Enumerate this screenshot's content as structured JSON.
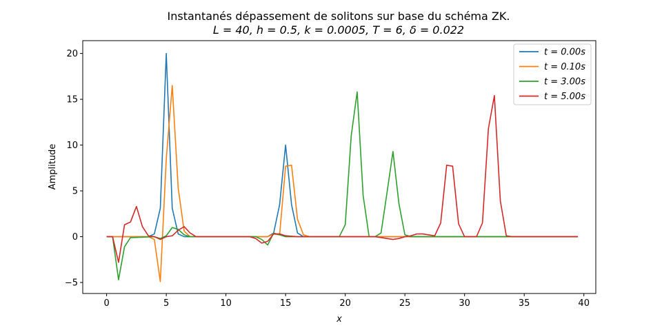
{
  "chart_data": {
    "type": "line",
    "title": "Instantanés dépassement de solitons sur base du schéma ZK.",
    "subtitle": "L = 40, h = 0.5, k = 0.0005, T = 6, δ = 0.022",
    "xlabel": "x",
    "ylabel": "Amplitude",
    "xlim": [
      -2,
      41
    ],
    "ylim": [
      -6.2,
      21.4
    ],
    "xticks": [
      0,
      5,
      10,
      15,
      20,
      25,
      30,
      35,
      40
    ],
    "yticks": [
      -5,
      0,
      5,
      10,
      15,
      20
    ],
    "xtick_labels": [
      "0",
      "5",
      "10",
      "15",
      "20",
      "25",
      "30",
      "35",
      "40"
    ],
    "ytick_labels": [
      "−5",
      "0",
      "5",
      "10",
      "15",
      "20"
    ],
    "grid": false,
    "legend_position": "top-right",
    "series": [
      {
        "name": "t = 0.00s",
        "color": "#1f77b4",
        "points": [
          [
            0,
            0
          ],
          [
            3.5,
            0
          ],
          [
            4,
            0.3
          ],
          [
            4.5,
            3.1
          ],
          [
            5,
            20
          ],
          [
            5.5,
            3.1
          ],
          [
            6,
            0.3
          ],
          [
            6.5,
            0
          ],
          [
            13.5,
            0
          ],
          [
            14,
            0.4
          ],
          [
            14.5,
            3.5
          ],
          [
            15,
            10
          ],
          [
            15.5,
            3.5
          ],
          [
            16,
            0.4
          ],
          [
            16.5,
            0
          ],
          [
            39.5,
            0
          ]
        ]
      },
      {
        "name": "t = 0.10s",
        "color": "#ff7f0e",
        "points": [
          [
            0,
            0
          ],
          [
            3.5,
            0
          ],
          [
            4,
            -0.3
          ],
          [
            4.5,
            -4.9
          ],
          [
            5,
            8.5
          ],
          [
            5.5,
            16.5
          ],
          [
            6,
            5.3
          ],
          [
            6.5,
            0.6
          ],
          [
            7,
            0
          ],
          [
            13.5,
            0
          ],
          [
            14,
            0.3
          ],
          [
            14.5,
            0.2
          ],
          [
            15,
            7.7
          ],
          [
            15.5,
            7.8
          ],
          [
            16,
            1.9
          ],
          [
            16.5,
            0.2
          ],
          [
            17,
            0
          ],
          [
            39.5,
            0
          ]
        ]
      },
      {
        "name": "t = 3.00s",
        "color": "#2ca02c",
        "points": [
          [
            0,
            0
          ],
          [
            0.5,
            0
          ],
          [
            1,
            -4.7
          ],
          [
            1.5,
            -1.1
          ],
          [
            2,
            -0.1
          ],
          [
            4,
            0
          ],
          [
            4.5,
            -0.2
          ],
          [
            5,
            0.1
          ],
          [
            5.5,
            1
          ],
          [
            6,
            0.8
          ],
          [
            6.5,
            0.2
          ],
          [
            7,
            0
          ],
          [
            12.5,
            0
          ],
          [
            13,
            -0.3
          ],
          [
            13.5,
            -0.9
          ],
          [
            14,
            0.4
          ],
          [
            14.5,
            0.2
          ],
          [
            15,
            0
          ],
          [
            19.5,
            0
          ],
          [
            20,
            1.3
          ],
          [
            20.5,
            11
          ],
          [
            21,
            15.8
          ],
          [
            21.5,
            4.5
          ],
          [
            22,
            0
          ],
          [
            22.5,
            0
          ],
          [
            23,
            0.4
          ],
          [
            23.5,
            4.8
          ],
          [
            24,
            9.3
          ],
          [
            24.5,
            3.6
          ],
          [
            25,
            0.2
          ],
          [
            25.5,
            0
          ],
          [
            39.5,
            0
          ]
        ]
      },
      {
        "name": "t = 5.00s",
        "color": "#d62728",
        "points": [
          [
            0,
            0
          ],
          [
            0.5,
            0
          ],
          [
            1,
            -2.8
          ],
          [
            1.5,
            1.3
          ],
          [
            2,
            1.6
          ],
          [
            2.5,
            3.3
          ],
          [
            3,
            1.1
          ],
          [
            3.5,
            0.1
          ],
          [
            4,
            0
          ],
          [
            4.5,
            -0.3
          ],
          [
            5,
            0
          ],
          [
            5.5,
            0.1
          ],
          [
            6,
            0.7
          ],
          [
            6.5,
            1.1
          ],
          [
            7,
            0.4
          ],
          [
            7.5,
            0
          ],
          [
            12,
            0
          ],
          [
            12.5,
            -0.2
          ],
          [
            13,
            -0.7
          ],
          [
            13.5,
            -0.5
          ],
          [
            14,
            0.3
          ],
          [
            14.5,
            0.3
          ],
          [
            15,
            0.1
          ],
          [
            16,
            0
          ],
          [
            22.5,
            0
          ],
          [
            23,
            -0.1
          ],
          [
            23.5,
            -0.2
          ],
          [
            24,
            -0.3
          ],
          [
            24.5,
            -0.2
          ],
          [
            25,
            0
          ],
          [
            25.5,
            0.1
          ],
          [
            26,
            0.3
          ],
          [
            26.5,
            0.3
          ],
          [
            27,
            0.2
          ],
          [
            27.5,
            0.1
          ],
          [
            28,
            1.5
          ],
          [
            28.5,
            7.8
          ],
          [
            29,
            7.7
          ],
          [
            29.5,
            1.4
          ],
          [
            30,
            0
          ],
          [
            30.5,
            0
          ],
          [
            31,
            0
          ],
          [
            31.5,
            1.5
          ],
          [
            32,
            11.8
          ],
          [
            32.5,
            15.4
          ],
          [
            33,
            3.9
          ],
          [
            33.5,
            0.1
          ],
          [
            34,
            0
          ],
          [
            39.5,
            0
          ]
        ]
      }
    ]
  }
}
